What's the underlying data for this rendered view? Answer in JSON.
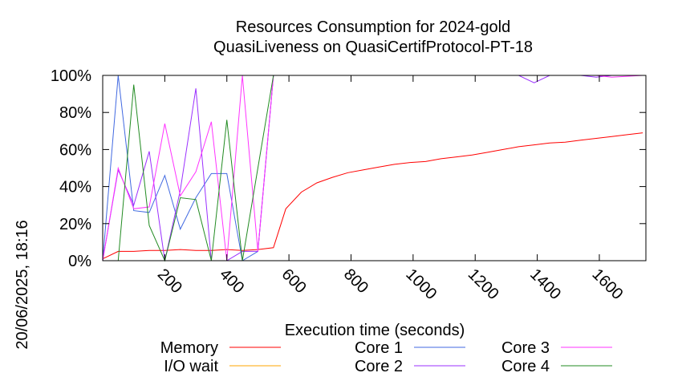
{
  "chart_data": {
    "type": "line",
    "title_line1": "Resources Consumption for 2024-gold",
    "title_line2": "QuasiLiveness on QuasiCertifProtocol-PT-18",
    "xlabel": "Execution time (seconds)",
    "ylabel": "",
    "side_label": "20/06/2025, 18:16",
    "xlim": [
      0,
      1750
    ],
    "ylim": [
      0,
      100
    ],
    "x_ticks": [
      200,
      400,
      600,
      800,
      1000,
      1200,
      1400,
      1600
    ],
    "y_ticks": [
      0,
      20,
      40,
      60,
      80,
      100
    ],
    "y_tick_labels": [
      "0%",
      "20%",
      "40%",
      "60%",
      "80%",
      "100%"
    ],
    "grid": false,
    "legend_position": "bottom",
    "series": [
      {
        "name": "Memory",
        "color": "#ff0000",
        "x": [
          0,
          50,
          100,
          150,
          200,
          250,
          300,
          350,
          400,
          450,
          500,
          550,
          590,
          640,
          690,
          740,
          790,
          840,
          890,
          940,
          990,
          1040,
          1090,
          1140,
          1190,
          1240,
          1290,
          1340,
          1390,
          1440,
          1490,
          1540,
          1590,
          1640,
          1690,
          1740
        ],
        "values": [
          1,
          5,
          5,
          5.5,
          5.5,
          6,
          5.5,
          5.5,
          6,
          5.5,
          6,
          7,
          28,
          37,
          42,
          45,
          47.5,
          49,
          50.5,
          52,
          53,
          53.5,
          55,
          56,
          57,
          58.5,
          60,
          61.5,
          62.5,
          63.5,
          64,
          65,
          66,
          67,
          68,
          69
        ]
      },
      {
        "name": "I/O wait",
        "color": "#ffa500",
        "x": [
          0,
          550
        ],
        "values": [
          0,
          0
        ]
      },
      {
        "name": "Core 1",
        "color": "#4169e1",
        "x": [
          0,
          50,
          100,
          150,
          200,
          250,
          300,
          350,
          400,
          450,
          500,
          550,
          600,
          1740
        ],
        "values": [
          0,
          100,
          27,
          26,
          46,
          17,
          34,
          47,
          47,
          0,
          5,
          100,
          100,
          100
        ]
      },
      {
        "name": "Core 2",
        "color": "#9b30ff",
        "x": [
          0,
          50,
          100,
          150,
          200,
          250,
          300,
          350,
          400,
          450,
          500,
          550,
          1340,
          1390,
          1440,
          1540,
          1590,
          1640,
          1740
        ],
        "values": [
          0,
          49,
          30,
          59,
          0,
          38,
          93,
          0,
          0,
          5,
          5,
          100,
          100,
          96,
          100,
          100,
          99,
          100,
          100
        ]
      },
      {
        "name": "Core 3",
        "color": "#ff33ff",
        "x": [
          0,
          50,
          100,
          150,
          200,
          250,
          300,
          350,
          400,
          450,
          500,
          550,
          1590,
          1640,
          1740
        ],
        "values": [
          0,
          50,
          28,
          29,
          74,
          35,
          48,
          75,
          0,
          100,
          5,
          100,
          100,
          99,
          100
        ]
      },
      {
        "name": "Core 4",
        "color": "#228b22",
        "x": [
          0,
          50,
          100,
          150,
          200,
          250,
          300,
          350,
          400,
          450,
          500,
          550,
          1740
        ],
        "values": [
          0,
          0,
          95,
          19,
          0,
          34,
          33,
          0,
          76,
          0,
          50,
          100,
          100
        ]
      }
    ]
  }
}
